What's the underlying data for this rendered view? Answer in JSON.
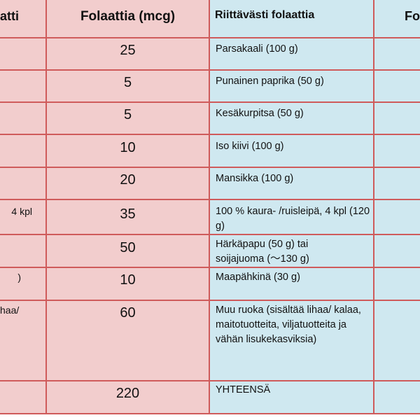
{
  "header": {
    "col1": "atti",
    "col2": "Folaattia (mcg)",
    "col3": "Riittävästi folaattia",
    "col4": "Fo"
  },
  "rows": [
    {
      "left": "",
      "amount": "25",
      "food": "Parsakaali (100 g)"
    },
    {
      "left": "",
      "amount": "5",
      "food": "Punainen paprika (50 g)"
    },
    {
      "left": "",
      "amount": "5",
      "food": "Kesäkurpitsa (50 g)"
    },
    {
      "left": "",
      "amount": "10",
      "food": "Iso kiivi (100 g)"
    },
    {
      "left": "",
      "amount": "20",
      "food": "Mansikka (100 g)"
    },
    {
      "left": "4 kpl",
      "amount": "35",
      "food": "100 % kaura- /ruisleipä, 4 kpl (120 g)"
    },
    {
      "left": "",
      "amount": "50",
      "food": "Härkäpapu (50 g) tai soijajuoma (〜130 g)"
    },
    {
      "left": ")",
      "amount": "10",
      "food": "Maapähkinä (30 g)"
    },
    {
      "left": "haa/",
      "amount": "60",
      "food": "Muu ruoka (sisältää lihaa/ kalaa, maitotuotteita, viljatuotteita ja vähän lisukekasviksia)"
    },
    {
      "left": "",
      "amount": "220",
      "food": "YHTEENSÄ"
    }
  ]
}
